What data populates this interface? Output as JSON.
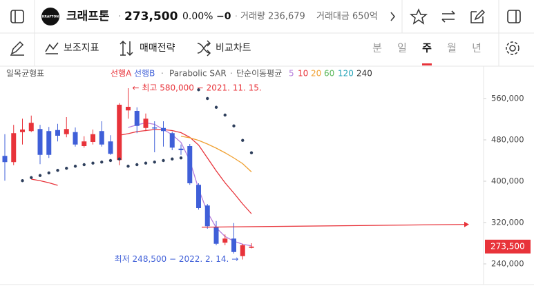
{
  "header": {
    "logo": "KRAFTON",
    "name": "크래프톤",
    "dot": "·",
    "price": "273,500",
    "change_pct": "0.00%",
    "change": "−0",
    "volume": "거래량 236,679",
    "amount": "거래대금 650억"
  },
  "toolbar": {
    "indicators": "보조지표",
    "strategy": "매매전략",
    "compare": "비교차트",
    "periods": [
      "분",
      "일",
      "주",
      "월",
      "년"
    ],
    "selected_period": 2
  },
  "chart_data": {
    "type": "candlestick",
    "title": "일목균형표",
    "legend": [
      "선행A",
      "선행B",
      "·",
      "Parabolic SAR",
      "·",
      "단순이동평균"
    ],
    "legend_colors": [
      "#e8333a",
      "#3f5fd8",
      "#888888",
      "#555555",
      "#888888",
      "#555555"
    ],
    "categories": [
      null,
      null,
      null,
      null,
      null,
      null,
      null,
      null,
      null,
      null,
      null,
      null,
      null,
      null,
      null,
      null,
      null,
      null,
      null,
      null,
      null,
      null,
      null,
      null,
      null,
      null,
      null,
      null,
      null
    ],
    "open": [
      449000,
      437000,
      495000,
      497000,
      501000,
      497000,
      499000,
      491000,
      495000,
      468000,
      476000,
      497000,
      477000,
      441000,
      537000,
      536000,
      503000,
      504000,
      503000,
      493000,
      463000,
      468000,
      393000,
      353000,
      311000,
      281000,
      289000,
      255000,
      271000
    ],
    "high": [
      491000,
      509000,
      521000,
      527000,
      509000,
      505000,
      511000,
      524000,
      504000,
      487000,
      500000,
      516000,
      489000,
      551000,
      580000,
      543000,
      531000,
      516000,
      516000,
      496000,
      471000,
      472000,
      396000,
      356000,
      323000,
      297000,
      319000,
      279000,
      280000
    ],
    "low": [
      401000,
      431000,
      471000,
      495000,
      433000,
      445000,
      477000,
      485000,
      467000,
      465000,
      471000,
      467000,
      451000,
      431000,
      521000,
      493000,
      497000,
      456000,
      467000,
      460000,
      451000,
      393000,
      345000,
      308000,
      276000,
      276000,
      260000,
      248500,
      270000
    ],
    "close": [
      437000,
      493000,
      500000,
      513000,
      451000,
      451000,
      488000,
      501000,
      471000,
      477000,
      491000,
      471000,
      453000,
      548000,
      544000,
      507000,
      521000,
      502000,
      497000,
      465000,
      460000,
      396000,
      348000,
      313000,
      279000,
      289000,
      263000,
      276000,
      273500
    ],
    "up_color": "#e8333a",
    "down_color": "#3f5fd8",
    "span_a": {
      "color": "#e8333a",
      "values": [
        null,
        null,
        null,
        404000,
        401000,
        397000,
        392000,
        null,
        null,
        null,
        null,
        null,
        null,
        null,
        null,
        null,
        null,
        null,
        null,
        null,
        null,
        null,
        null,
        null,
        null,
        null,
        null,
        null,
        null
      ]
    },
    "sar": {
      "color": "#2e3f5c",
      "values": [
        null,
        null,
        401000,
        407000,
        411000,
        416000,
        421000,
        425000,
        429000,
        432000,
        435000,
        437000,
        440000,
        443000,
        429000,
        432000,
        435000,
        437000,
        440000,
        443000,
        445000,
        null,
        577000,
        560000,
        543000,
        528000,
        507000,
        479000,
        455000
      ]
    },
    "moving_averages": [
      {
        "name": "5",
        "color": "#b57edc",
        "values": [
          null,
          null,
          null,
          null,
          null,
          null,
          null,
          null,
          null,
          null,
          null,
          null,
          null,
          null,
          504000,
          509000,
          513000,
          510000,
          500000,
          490000,
          475000,
          440000,
          385000,
          340000,
          310000,
          293000,
          284000,
          278000,
          275000
        ]
      },
      {
        "name": "10",
        "color": "#e8333a",
        "values": [
          null,
          null,
          null,
          null,
          null,
          null,
          null,
          null,
          null,
          null,
          null,
          null,
          null,
          489000,
          492000,
          496000,
          498000,
          500000,
          500000,
          498000,
          494000,
          485000,
          470000,
          445000,
          420000,
          397000,
          377000,
          356000,
          337000
        ]
      },
      {
        "name": "20",
        "color": "#f0a030",
        "values": [
          null,
          null,
          null,
          null,
          null,
          null,
          null,
          null,
          null,
          null,
          null,
          null,
          null,
          null,
          null,
          null,
          null,
          null,
          null,
          null,
          487000,
          484000,
          479000,
          472000,
          464000,
          455000,
          445000,
          434000,
          418000
        ]
      },
      {
        "name": "60",
        "color": "#5cb85c",
        "values": [
          null,
          null,
          null,
          null,
          null,
          null,
          null,
          null,
          null,
          null,
          null,
          null,
          null,
          null,
          null,
          null,
          null,
          null,
          null,
          null,
          null,
          null,
          null,
          null,
          null,
          null,
          null,
          null,
          null
        ]
      },
      {
        "name": "120",
        "color": "#26a4b8",
        "values": [
          null,
          null,
          null,
          null,
          null,
          null,
          null,
          null,
          null,
          null,
          null,
          null,
          null,
          null,
          null,
          null,
          null,
          null,
          null,
          null,
          null,
          null,
          null,
          null,
          null,
          null,
          null,
          null,
          null
        ]
      },
      {
        "name": "240",
        "color": "#333333",
        "values": [
          null,
          null,
          null,
          null,
          null,
          null,
          null,
          null,
          null,
          null,
          null,
          null,
          null,
          null,
          null,
          null,
          null,
          null,
          null,
          null,
          null,
          null,
          null,
          null,
          null,
          null,
          null,
          null,
          null
        ]
      }
    ],
    "annotations": [
      {
        "text": "← 최고 580,000 − 2021. 11. 15.",
        "color": "#e8333a",
        "index": 14,
        "value": 580000
      },
      {
        "text": "최저 248,500 − 2022. 2. 14. →",
        "color": "#3f5fd8",
        "index": 27,
        "value": 248500
      }
    ],
    "hline": {
      "value": 311000,
      "color": "#e8333a"
    },
    "current_price": {
      "value": 273500,
      "label": "273,500",
      "color": "#e8333a"
    },
    "ylim": [
      200000,
      620000
    ],
    "yticks": [
      {
        "value": 240000,
        "label": "240,000"
      },
      {
        "value": 320000,
        "label": "320,000"
      },
      {
        "value": 400000,
        "label": "400,000"
      },
      {
        "value": 480000,
        "label": "480,000"
      },
      {
        "value": 560000,
        "label": "560,000"
      }
    ]
  }
}
